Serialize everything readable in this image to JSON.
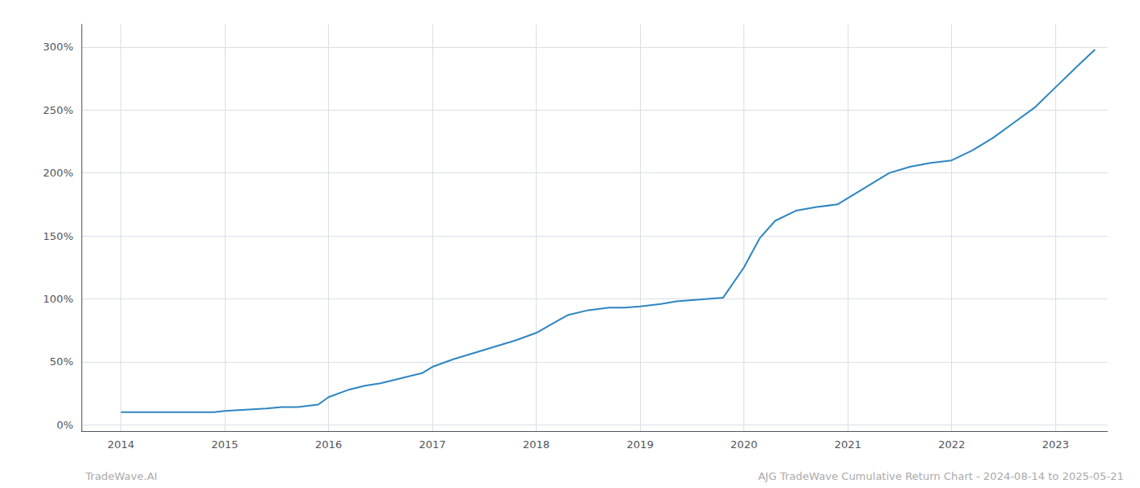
{
  "chart_data": {
    "type": "line",
    "x": [
      2014.0,
      2014.15,
      2014.3,
      2014.5,
      2014.7,
      2014.9,
      2015.0,
      2015.2,
      2015.4,
      2015.55,
      2015.7,
      2015.9,
      2016.0,
      2016.2,
      2016.35,
      2016.5,
      2016.7,
      2016.9,
      2017.0,
      2017.2,
      2017.4,
      2017.6,
      2017.8,
      2018.0,
      2018.15,
      2018.3,
      2018.5,
      2018.7,
      2018.85,
      2019.0,
      2019.1,
      2019.2,
      2019.35,
      2019.5,
      2019.65,
      2019.8,
      2020.0,
      2020.15,
      2020.3,
      2020.5,
      2020.7,
      2020.9,
      2021.0,
      2021.2,
      2021.4,
      2021.6,
      2021.8,
      2022.0,
      2022.2,
      2022.4,
      2022.6,
      2022.8,
      2023.0,
      2023.25,
      2023.38
    ],
    "values": [
      0.1,
      0.1,
      0.1,
      0.1,
      0.1,
      0.1,
      0.11,
      0.12,
      0.13,
      0.14,
      0.14,
      0.16,
      0.22,
      0.28,
      0.31,
      0.33,
      0.37,
      0.41,
      0.46,
      0.52,
      0.57,
      0.62,
      0.67,
      0.73,
      0.8,
      0.87,
      0.91,
      0.93,
      0.93,
      0.94,
      0.95,
      0.96,
      0.98,
      0.99,
      1.0,
      1.01,
      1.25,
      1.48,
      1.62,
      1.7,
      1.73,
      1.75,
      1.8,
      1.9,
      2.0,
      2.05,
      2.08,
      2.1,
      2.18,
      2.28,
      2.4,
      2.52,
      2.68,
      2.88,
      2.98
    ],
    "color": "#2e86c1",
    "xlim": [
      2013.62,
      2023.5
    ],
    "ylim": [
      -0.05,
      3.18
    ],
    "xticks": [
      2014,
      2015,
      2016,
      2017,
      2018,
      2019,
      2020,
      2021,
      2022,
      2023
    ],
    "yticks": [
      {
        "value": 0.0,
        "label": "0%"
      },
      {
        "value": 0.5,
        "label": "50%"
      },
      {
        "value": 1.0,
        "label": "100%"
      },
      {
        "value": 1.5,
        "label": "150%"
      },
      {
        "value": 2.0,
        "label": "200%"
      },
      {
        "value": 2.5,
        "label": "250%"
      },
      {
        "value": 3.0,
        "label": "300%"
      }
    ],
    "annotations": [
      "TradeWave.AI",
      "AJG TradeWave Cumulative Return Chart - 2024-08-14 to 2025-05-21"
    ],
    "grid": true
  }
}
